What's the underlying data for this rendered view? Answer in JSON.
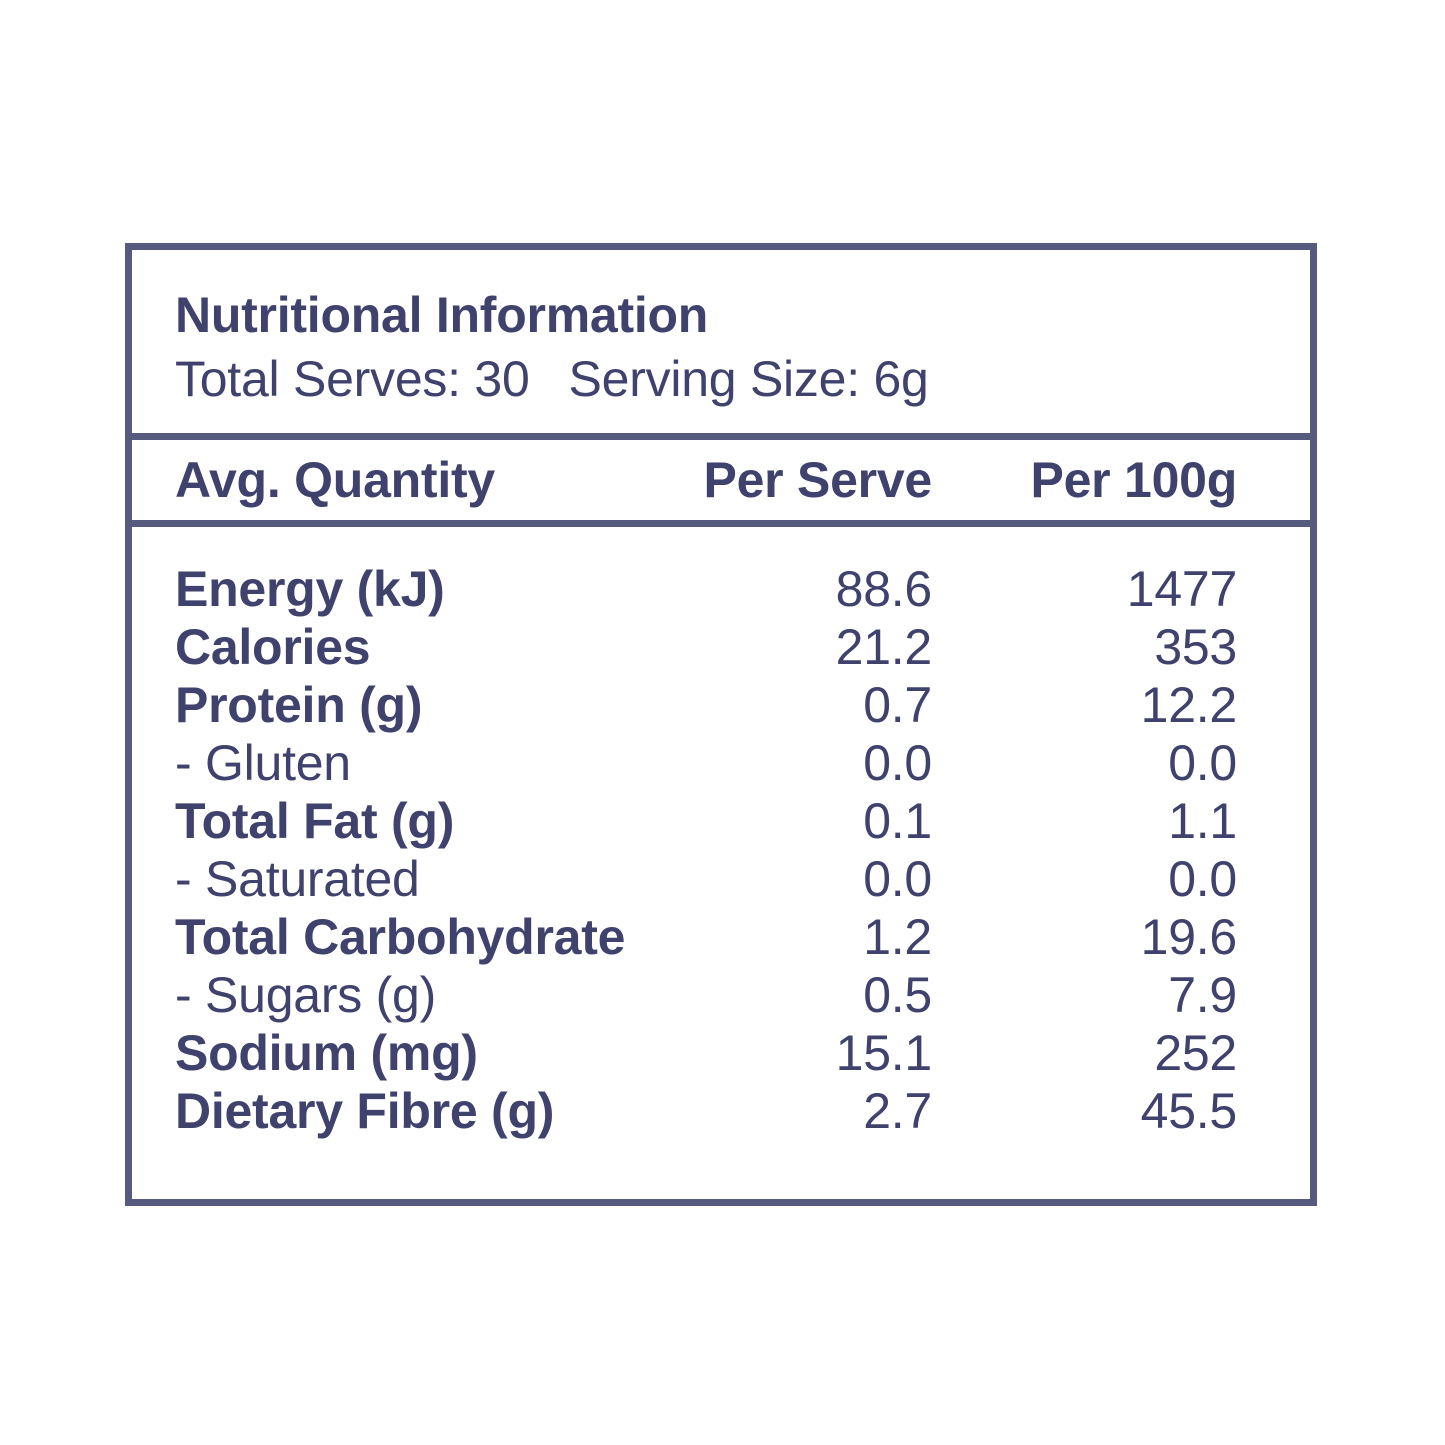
{
  "label": {
    "title": "Nutritional Information",
    "total_serves": "Total Serves: 30",
    "serving_size": "Serving Size: 6g"
  },
  "table": {
    "headers": [
      "Avg. Quantity",
      "Per Serve",
      "Per 100g"
    ],
    "rows": [
      {
        "label": "Energy (kJ)",
        "bold": true,
        "per_serve": "88.6",
        "per_100g": "1477"
      },
      {
        "label": "Calories",
        "bold": true,
        "per_serve": "21.2",
        "per_100g": "353"
      },
      {
        "label": "Protein (g)",
        "bold": true,
        "per_serve": "0.7",
        "per_100g": "12.2"
      },
      {
        "label": "- Gluten",
        "bold": false,
        "per_serve": "0.0",
        "per_100g": "0.0"
      },
      {
        "label": "Total Fat (g)",
        "bold": true,
        "per_serve": "0.1",
        "per_100g": "1.1"
      },
      {
        "label": "- Saturated",
        "bold": false,
        "per_serve": "0.0",
        "per_100g": "0.0"
      },
      {
        "label": "Total Carbohydrate",
        "bold": true,
        "per_serve": "1.2",
        "per_100g": "19.6"
      },
      {
        "label": "- Sugars (g)",
        "bold": false,
        "per_serve": "0.5",
        "per_100g": "7.9"
      },
      {
        "label": "Sodium (mg)",
        "bold": true,
        "per_serve": "15.1",
        "per_100g": "252"
      },
      {
        "label": "Dietary Fibre (g)",
        "bold": true,
        "per_serve": "2.7",
        "per_100g": "45.5"
      }
    ]
  },
  "colors": {
    "text": "#3F426C",
    "border": "#565A7E",
    "background": "#FFFFFF"
  }
}
